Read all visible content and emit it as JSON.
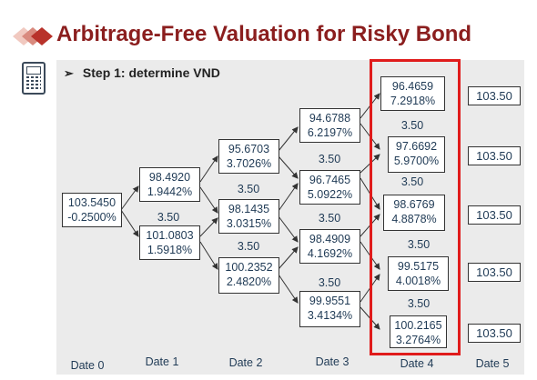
{
  "title": "Arbitrage-Free Valuation for Risky Bond",
  "step": {
    "arrow": "➢",
    "label": "Step 1: determine VND"
  },
  "colors": {
    "title": "#8b1e1e",
    "highlight": "#e01b1b",
    "panel": "#ebebeb",
    "text": "#1f3a55"
  },
  "icons": [
    "diamond-arrows-icon",
    "calculator-icon",
    "step-arrow-icon"
  ],
  "dates": [
    "Date 0",
    "Date 1",
    "Date 2",
    "Date 3",
    "Date 4",
    "Date 5"
  ],
  "tree": {
    "d0": [
      {
        "value": "103.5450",
        "rate": "-0.2500%"
      }
    ],
    "d1": [
      {
        "value": "98.4920",
        "rate": "1.9442%"
      },
      {
        "value": "101.0803",
        "rate": "1.5918%"
      }
    ],
    "d2": [
      {
        "value": "95.6703",
        "rate": "3.7026%"
      },
      {
        "value": "98.1435",
        "rate": "3.0315%"
      },
      {
        "value": "100.2352",
        "rate": "2.4820%"
      }
    ],
    "d3": [
      {
        "value": "94.6788",
        "rate": "6.2197%"
      },
      {
        "value": "96.7465",
        "rate": "5.0922%"
      },
      {
        "value": "98.4909",
        "rate": "4.1692%"
      },
      {
        "value": "99.9551",
        "rate": "3.4134%"
      }
    ],
    "d4": [
      {
        "value": "96.4659",
        "rate": "7.2918%"
      },
      {
        "value": "97.6692",
        "rate": "5.9700%"
      },
      {
        "value": "98.6769",
        "rate": "4.8878%"
      },
      {
        "value": "99.5175",
        "rate": "4.0018%"
      },
      {
        "value": "100.2165",
        "rate": "3.2764%"
      }
    ],
    "d5": [
      "103.50",
      "103.50",
      "103.50",
      "103.50",
      "103.50"
    ]
  },
  "coupons": {
    "d1": "3.50",
    "d2": [
      "3.50",
      "3.50"
    ],
    "d3": [
      "3.50",
      "3.50",
      "3.50"
    ],
    "d4": [
      "3.50",
      "3.50",
      "3.50",
      "3.50"
    ]
  }
}
